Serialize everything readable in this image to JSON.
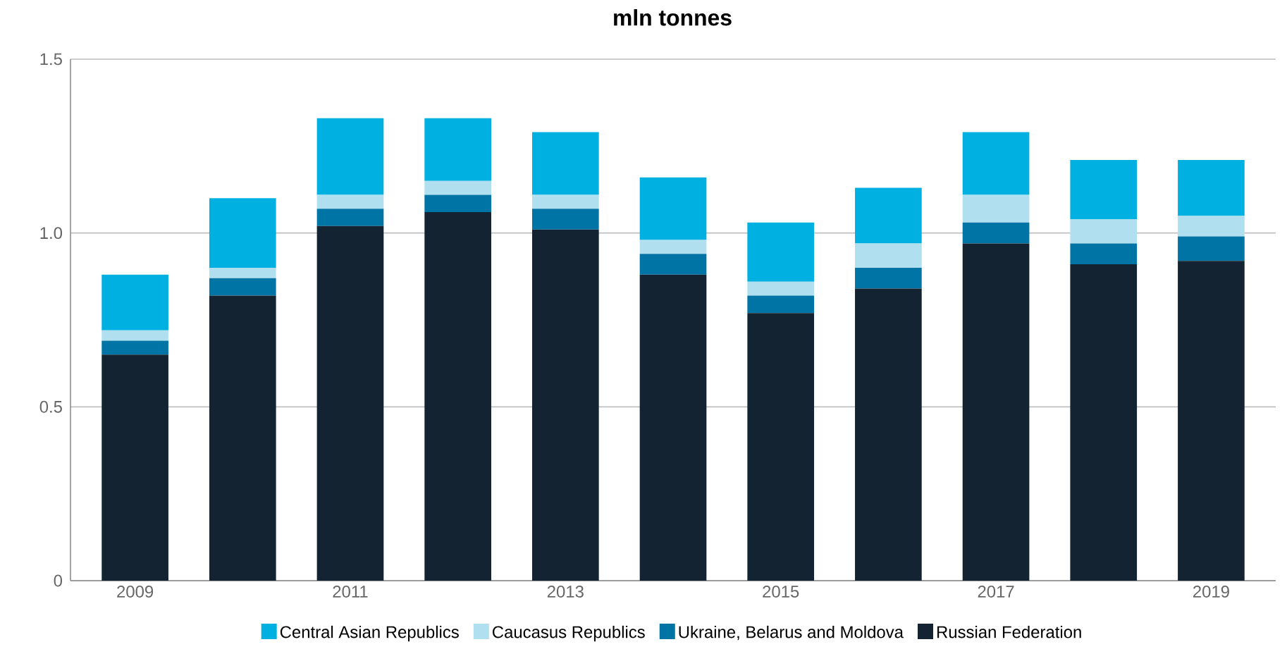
{
  "chart_data": {
    "type": "bar",
    "title": "mln tonnes",
    "stacked": true,
    "legend": "bottom",
    "grid": "y",
    "categories": [
      "2009",
      null,
      "2011",
      null,
      "2013",
      null,
      "2015",
      null,
      "2017",
      null,
      "2019"
    ],
    "ylim": [
      0,
      1.5
    ],
    "yticks": [
      0,
      0.5,
      {
        "value": 1,
        "label": "1.0"
      },
      1.5
    ],
    "series": [
      {
        "name": "Russian Federation",
        "color": "#132331",
        "values": [
          0.65,
          0.82,
          1.02,
          1.06,
          1.01,
          0.88,
          0.77,
          0.84,
          0.97,
          0.91,
          0.92
        ]
      },
      {
        "name": "Ukraine, Belarus and Moldova",
        "color": "#0075a5",
        "values": [
          0.04,
          0.05,
          0.05,
          0.05,
          0.06,
          0.06,
          0.05,
          0.06,
          0.06,
          0.06,
          0.07
        ]
      },
      {
        "name": "Caucasus Republics",
        "color": "#b0dff0",
        "values": [
          0.03,
          0.03,
          0.04,
          0.04,
          0.04,
          0.04,
          0.04,
          0.07,
          0.08,
          0.07,
          0.06
        ]
      },
      {
        "name": "Central Asian Republics",
        "color": "#00b0e0",
        "values": [
          0.16,
          0.2,
          0.22,
          0.18,
          0.18,
          0.18,
          0.17,
          0.16,
          0.18,
          0.17,
          0.16
        ]
      }
    ]
  }
}
